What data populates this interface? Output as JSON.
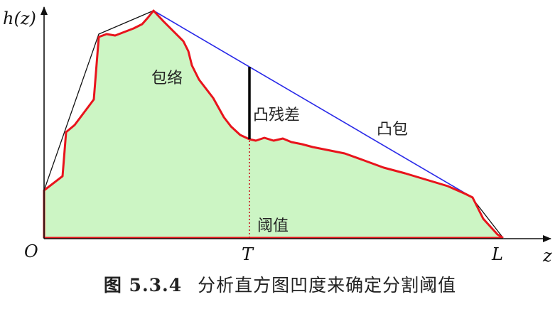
{
  "axes": {
    "y_label": "h(z)",
    "x_label": "z",
    "origin_label": "O",
    "threshold_label": "T",
    "end_label": "L"
  },
  "annotations": {
    "envelope": "包络",
    "convex_residual": "凸残差",
    "convex_hull": "凸包",
    "threshold": "阈值"
  },
  "caption": {
    "number": "图 5.3.4",
    "text": "分析直方图凹度来确定分割阈值"
  },
  "colors": {
    "fill": "#ccf5c4",
    "histogram": "#e8141c",
    "hull_blue": "#2a2ae8",
    "hull_black": "#111111"
  }
}
